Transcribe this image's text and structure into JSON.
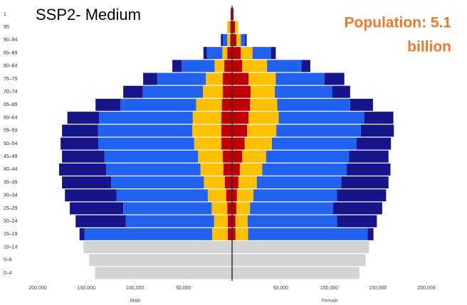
{
  "chart_data": {
    "type": "pyramid",
    "title": "SSP2- Medium",
    "annotation": [
      "Population: 5.1",
      "billion"
    ],
    "annotation_color": "#f0782a",
    "left_label": "Male",
    "right_label": "Female",
    "categories": [
      "1",
      "95",
      "90–94",
      "85–89",
      "80–84",
      "75–79",
      "70–74",
      "65–69",
      "60–64",
      "55–59",
      "50–54",
      "45–49",
      "40–44",
      "35–39",
      "30–34",
      "25–29",
      "20–24",
      "15–19",
      "10–14",
      "5–9",
      "0–4"
    ],
    "xlim": [
      -200000,
      200000
    ],
    "xticks": [
      {
        "value": -200000,
        "label": "200,000"
      },
      {
        "value": -150000,
        "label": "150,000"
      },
      {
        "value": -100000,
        "label": "100,000"
      },
      {
        "value": -50000,
        "label": "50,000"
      },
      {
        "value": 50000,
        "label": "50,000"
      },
      {
        "value": 100000,
        "label": "100,000"
      },
      {
        "value": 150000,
        "label": "150,000"
      },
      {
        "value": 200000,
        "label": "200,000"
      }
    ],
    "series": [
      {
        "side": "left",
        "color": "#d3d3d3",
        "values": [
          null,
          null,
          null,
          null,
          null,
          null,
          null,
          null,
          null,
          null,
          null,
          null,
          null,
          null,
          null,
          null,
          null,
          null,
          153000,
          147000,
          141000
        ]
      },
      {
        "side": "left",
        "color": "#c00000",
        "values": [
          1500,
          2000,
          2000,
          5000,
          8000,
          9500,
          9500,
          10500,
          11000,
          11000,
          11000,
          9500,
          9000,
          7500,
          6000,
          5000,
          4500,
          4500,
          null,
          null,
          null
        ]
      },
      {
        "side": "left",
        "color": "#ffc000",
        "values": [
          null,
          3000,
          3000,
          5000,
          10000,
          17500,
          20500,
          26500,
          29500,
          30000,
          28000,
          25500,
          23500,
          21500,
          19000,
          16000,
          14000,
          16000,
          null,
          null,
          null
        ]
      },
      {
        "side": "left",
        "color": "#2262f0",
        "values": [
          null,
          null,
          4500,
          16000,
          34000,
          50000,
          62000,
          78000,
          96500,
          97000,
          98500,
          96500,
          97000,
          95500,
          94000,
          91000,
          91000,
          131500,
          null,
          null,
          null
        ]
      },
      {
        "side": "left",
        "color": "#16168a",
        "values": [
          null,
          null,
          2000,
          3500,
          9500,
          14500,
          20000,
          25500,
          32500,
          37000,
          39000,
          43500,
          48500,
          50500,
          53000,
          55000,
          51500,
          5000,
          null,
          null,
          null
        ]
      },
      {
        "side": "right",
        "color": "#d3d3d3",
        "values": [
          null,
          null,
          null,
          null,
          null,
          null,
          null,
          null,
          null,
          null,
          null,
          null,
          null,
          null,
          null,
          null,
          null,
          null,
          141000,
          137500,
          131000
        ]
      },
      {
        "side": "right",
        "color": "#c00000",
        "values": [
          1500,
          3000,
          4500,
          9000,
          10500,
          17000,
          19000,
          18500,
          17000,
          15500,
          13000,
          10500,
          8000,
          6500,
          5000,
          4500,
          3500,
          3500,
          null,
          null,
          null
        ]
      },
      {
        "side": "right",
        "color": "#ffc000",
        "values": [
          null,
          3000,
          4500,
          12000,
          25500,
          28000,
          25000,
          28000,
          31000,
          30000,
          28000,
          24500,
          23000,
          19000,
          17000,
          14000,
          12500,
          13000,
          null,
          null,
          null
        ]
      },
      {
        "side": "right",
        "color": "#2262f0",
        "values": [
          null,
          null,
          4500,
          19000,
          35500,
          50000,
          59000,
          75000,
          88000,
          87000,
          87000,
          85500,
          87000,
          87000,
          86000,
          85500,
          92000,
          123000,
          null,
          null,
          null
        ]
      },
      {
        "side": "right",
        "color": "#16168a",
        "values": [
          null,
          null,
          1500,
          5000,
          9000,
          20500,
          18500,
          23500,
          30000,
          34000,
          35500,
          40500,
          45000,
          48500,
          50500,
          50500,
          41000,
          6000,
          null,
          null,
          null
        ]
      }
    ]
  }
}
